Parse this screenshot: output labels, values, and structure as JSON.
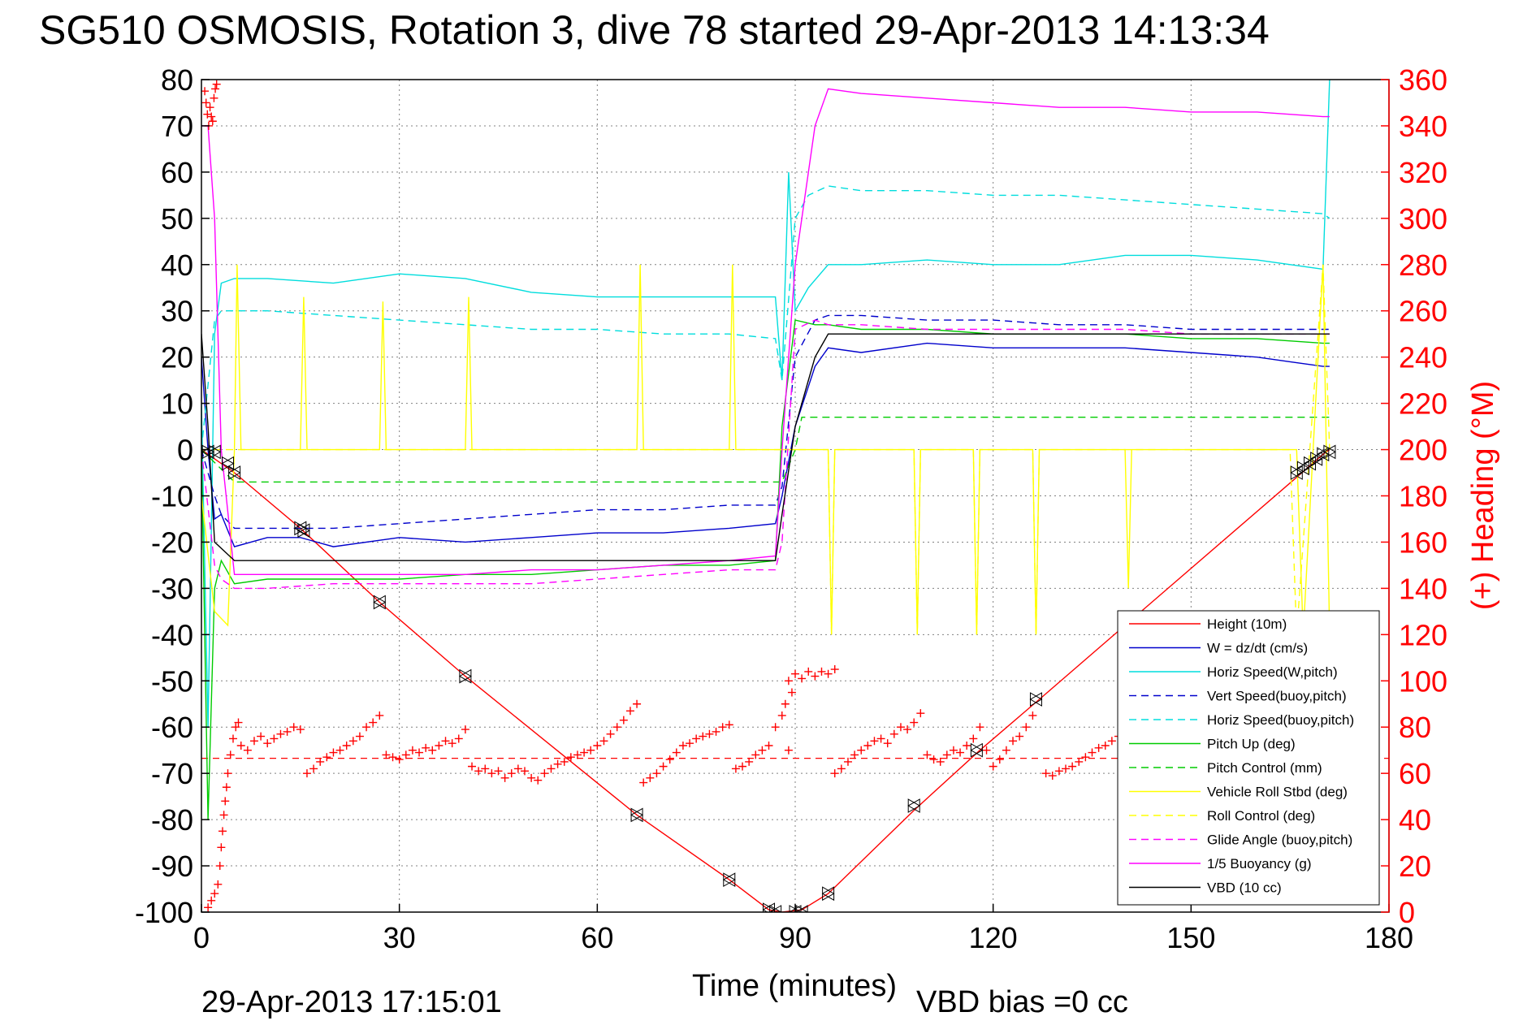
{
  "chart_data": {
    "type": "line",
    "title": "SG510 OSMOSIS, Rotation 3, dive 78 started 29-Apr-2013 14:13:34",
    "xlabel": "Time (minutes)",
    "ylabel_right": "(+) Heading (°M)",
    "xlim": [
      0,
      180
    ],
    "ylim": [
      -100,
      80
    ],
    "y2lim": [
      0,
      360
    ],
    "x_ticks": [
      "0",
      "30",
      "60",
      "90",
      "120",
      "150",
      "180"
    ],
    "y_ticks": [
      "80",
      "70",
      "60",
      "50",
      "40",
      "30",
      "20",
      "10",
      "0",
      "-10",
      "-20",
      "-30",
      "-40",
      "-50",
      "-60",
      "-70",
      "-80",
      "-90",
      "-100"
    ],
    "y2_ticks": [
      "360",
      "340",
      "320",
      "300",
      "280",
      "260",
      "240",
      "220",
      "200",
      "180",
      "160",
      "140",
      "120",
      "100",
      "80",
      "60",
      "40",
      "20",
      "0"
    ],
    "grid": true,
    "legend_position": "bottom-right",
    "footer_date": "29-Apr-2013 17:15:01",
    "footer_vbd": "VBD bias =0 cc",
    "colors": {
      "height": "#ff0000",
      "w": "#0000cc",
      "horiz_w": "#00dddd",
      "pitch": "#00cc00",
      "roll": "#ffff00",
      "glide": "#ff00ff",
      "vbd": "#000000",
      "heading": "#ff0000"
    },
    "series": [
      {
        "name": "Height (10m)",
        "style": "solid",
        "color": "#ff0000",
        "x": [
          0,
          2,
          5,
          15,
          27,
          40,
          66,
          80,
          86,
          88,
          91,
          95,
          108,
          118,
          127,
          140,
          166,
          170,
          171
        ],
        "y": [
          0,
          -2,
          -5,
          -17,
          -33,
          -49,
          -79,
          -93,
          -99.5,
          -100,
          -99.5,
          -96,
          -78,
          -65,
          -54,
          -38,
          -6,
          -1,
          0
        ]
      },
      {
        "name": "W = dz/dt (cm/s)",
        "style": "solid",
        "color": "#0000cc",
        "x": [
          0,
          1,
          2,
          3,
          5,
          10,
          15,
          20,
          30,
          40,
          50,
          60,
          70,
          80,
          87,
          88,
          90,
          93,
          95,
          100,
          110,
          120,
          130,
          140,
          150,
          160,
          165,
          170,
          171
        ],
        "y": [
          20,
          0,
          -15,
          -14,
          -21,
          -19,
          -19,
          -21,
          -19,
          -20,
          -19,
          -18,
          -18,
          -17,
          -16,
          -10,
          5,
          18,
          22,
          21,
          23,
          22,
          22,
          22,
          21,
          20,
          19,
          18,
          18
        ]
      },
      {
        "name": "Horiz Speed(W,pitch)",
        "style": "solid",
        "color": "#00dddd",
        "x": [
          0,
          1,
          2,
          3,
          5,
          10,
          20,
          30,
          40,
          50,
          60,
          70,
          80,
          87,
          88,
          89,
          90,
          92,
          95,
          100,
          110,
          120,
          130,
          140,
          150,
          160,
          170,
          171
        ],
        "y": [
          10,
          -60,
          25,
          36,
          37,
          37,
          36,
          38,
          37,
          34,
          33,
          33,
          33,
          33,
          15,
          60,
          30,
          35,
          40,
          40,
          41,
          40,
          40,
          42,
          42,
          41,
          39,
          80
        ]
      },
      {
        "name": "Vert Speed(buoy,pitch)",
        "style": "dashed",
        "color": "#0000cc",
        "x": [
          0,
          2,
          3,
          5,
          10,
          20,
          30,
          40,
          50,
          60,
          70,
          80,
          87,
          88,
          90,
          93,
          95,
          100,
          110,
          120,
          130,
          140,
          150,
          160,
          170,
          171
        ],
        "y": [
          0,
          -10,
          -14,
          -17,
          -17,
          -17,
          -16,
          -15,
          -14,
          -13,
          -13,
          -12,
          -12,
          -8,
          20,
          28,
          29,
          29,
          28,
          28,
          27,
          27,
          26,
          26,
          26,
          26
        ]
      },
      {
        "name": "Horiz Speed(buoy,pitch)",
        "style": "dashed",
        "color": "#00dddd",
        "x": [
          0,
          2,
          3,
          5,
          10,
          20,
          30,
          40,
          50,
          60,
          70,
          80,
          87,
          88,
          90,
          92,
          95,
          100,
          110,
          120,
          130,
          140,
          150,
          160,
          170,
          171
        ],
        "y": [
          0,
          28,
          30,
          30,
          30,
          29,
          28,
          27,
          26,
          26,
          25,
          25,
          24,
          15,
          50,
          55,
          57,
          56,
          56,
          55,
          55,
          54,
          53,
          52,
          51,
          50
        ]
      },
      {
        "name": "Pitch Up (deg)",
        "style": "solid",
        "color": "#00cc00",
        "x": [
          0,
          1,
          2,
          3,
          5,
          10,
          20,
          30,
          40,
          50,
          60,
          70,
          80,
          87,
          88,
          90,
          93,
          95,
          100,
          110,
          120,
          130,
          140,
          150,
          160,
          170,
          171
        ],
        "y": [
          0,
          -80,
          -30,
          -24,
          -29,
          -28,
          -28,
          -28,
          -27,
          -27,
          -26,
          -25,
          -25,
          -24,
          5,
          28,
          27,
          27,
          26,
          26,
          25,
          25,
          25,
          24,
          24,
          23,
          23
        ]
      },
      {
        "name": "Pitch Control (mm)",
        "style": "dashed",
        "color": "#00cc00",
        "x": [
          0,
          5,
          88,
          90,
          91,
          171
        ],
        "y": [
          0,
          -7,
          -7,
          0,
          7,
          7
        ]
      },
      {
        "name": "Vehicle Roll Stbd (deg)",
        "style": "solid",
        "color": "#ffff00",
        "x": [
          0,
          2,
          4,
          5,
          5.4,
          6,
          15,
          15.5,
          16,
          27,
          27.5,
          28,
          40,
          40.5,
          41,
          66,
          66.5,
          67,
          80,
          80.5,
          81,
          87,
          95,
          95.5,
          96,
          108,
          108.5,
          109,
          117,
          117.5,
          118,
          126,
          126.5,
          127,
          140,
          140.5,
          141,
          166,
          167,
          170,
          171
        ],
        "y": [
          -10,
          -35,
          -38,
          0,
          40,
          0,
          0,
          33,
          0,
          0,
          32,
          0,
          0,
          33,
          0,
          0,
          40,
          0,
          0,
          40,
          0,
          0,
          0,
          -40,
          0,
          0,
          -40,
          0,
          0,
          -40,
          0,
          0,
          -40,
          0,
          0,
          -30,
          0,
          0,
          -40,
          40,
          -40
        ]
      },
      {
        "name": "Roll Control (deg)",
        "style": "dashed",
        "color": "#ffff00",
        "x": [
          0,
          88,
          89,
          95,
          95.5,
          96,
          108,
          108.5,
          109,
          117,
          117.5,
          118,
          126,
          126.5,
          127,
          165,
          166,
          170,
          171
        ],
        "y": [
          0,
          0,
          0,
          0,
          -40,
          0,
          0,
          -40,
          0,
          0,
          -40,
          0,
          0,
          -40,
          0,
          0,
          -40,
          40,
          0
        ]
      },
      {
        "name": "Glide Angle (buoy,pitch)",
        "style": "dashed",
        "color": "#ff00ff",
        "x": [
          0,
          2,
          3,
          5,
          10,
          20,
          30,
          40,
          50,
          60,
          70,
          80,
          87,
          88,
          90,
          93,
          95,
          100,
          110,
          120,
          130,
          140,
          150,
          160,
          170,
          171
        ],
        "y": [
          0,
          -25,
          -28,
          -30,
          -30,
          -29,
          -29,
          -29,
          -29,
          -28,
          -27,
          -26,
          -26,
          -20,
          26,
          28,
          27,
          27,
          26,
          26,
          26,
          26,
          25,
          25,
          25,
          25
        ]
      },
      {
        "name": "1/5 Buoyancy (g)",
        "style": "solid",
        "color": "#ff00ff",
        "x": [
          0,
          1,
          2,
          3,
          5,
          10,
          20,
          30,
          40,
          50,
          60,
          70,
          80,
          87,
          88,
          90,
          93,
          95,
          100,
          110,
          120,
          130,
          140,
          150,
          160,
          170,
          171
        ],
        "y": [
          70,
          70,
          50,
          0,
          -27,
          -27,
          -27,
          -27,
          -27,
          -26,
          -26,
          -25,
          -24,
          -23,
          0,
          40,
          70,
          78,
          77,
          76,
          75,
          74,
          74,
          73,
          73,
          72,
          72
        ]
      },
      {
        "name": "VBD (10 cc)",
        "style": "solid",
        "color": "#000000",
        "x": [
          0,
          1,
          2,
          5,
          10,
          20,
          30,
          40,
          50,
          60,
          70,
          80,
          87,
          88,
          90,
          93,
          95,
          100,
          110,
          120,
          130,
          140,
          150,
          160,
          170,
          171
        ],
        "y": [
          25,
          5,
          -20,
          -24,
          -24,
          -24,
          -24,
          -24,
          -24,
          -24,
          -24,
          -24,
          -24,
          -14,
          5,
          20,
          25,
          25,
          25,
          25,
          25,
          25,
          25,
          25,
          25,
          25
        ]
      }
    ],
    "heading_mean_deg": 66.5,
    "heading_points": [
      [
        0.5,
        355
      ],
      [
        0.7,
        350
      ],
      [
        0.9,
        345
      ],
      [
        1.1,
        340
      ],
      [
        1.3,
        348
      ],
      [
        1.5,
        344
      ],
      [
        1.7,
        342
      ],
      [
        1.9,
        352
      ],
      [
        2.1,
        356
      ],
      [
        2.3,
        358
      ],
      [
        1.0,
        2
      ],
      [
        1.5,
        5
      ],
      [
        2.0,
        8
      ],
      [
        2.5,
        12
      ],
      [
        2.8,
        20
      ],
      [
        3.0,
        28
      ],
      [
        3.2,
        35
      ],
      [
        3.4,
        42
      ],
      [
        3.6,
        48
      ],
      [
        3.8,
        54
      ],
      [
        4.0,
        60
      ],
      [
        4.4,
        68
      ],
      [
        4.8,
        75
      ],
      [
        5.2,
        80
      ],
      [
        5.6,
        82
      ],
      [
        6,
        72
      ],
      [
        7,
        70
      ],
      [
        8,
        74
      ],
      [
        9,
        76
      ],
      [
        10,
        73
      ],
      [
        11,
        75
      ],
      [
        12,
        77
      ],
      [
        13,
        78
      ],
      [
        14,
        80
      ],
      [
        15,
        79
      ],
      [
        16,
        60
      ],
      [
        17,
        62
      ],
      [
        18,
        65
      ],
      [
        19,
        67
      ],
      [
        20,
        69
      ],
      [
        21,
        70
      ],
      [
        22,
        72
      ],
      [
        23,
        74
      ],
      [
        24,
        76
      ],
      [
        25,
        80
      ],
      [
        26,
        82
      ],
      [
        27,
        85
      ],
      [
        28,
        68
      ],
      [
        29,
        67
      ],
      [
        30,
        66
      ],
      [
        31,
        68
      ],
      [
        32,
        70
      ],
      [
        33,
        69
      ],
      [
        34,
        71
      ],
      [
        35,
        70
      ],
      [
        36,
        72
      ],
      [
        37,
        74
      ],
      [
        38,
        73
      ],
      [
        39,
        75
      ],
      [
        40,
        79
      ],
      [
        41,
        63
      ],
      [
        42,
        61
      ],
      [
        43,
        62
      ],
      [
        44,
        60
      ],
      [
        45,
        61
      ],
      [
        46,
        58
      ],
      [
        47,
        60
      ],
      [
        48,
        62
      ],
      [
        49,
        61
      ],
      [
        50,
        58
      ],
      [
        51,
        57
      ],
      [
        52,
        60
      ],
      [
        53,
        62
      ],
      [
        54,
        64
      ],
      [
        55,
        65
      ],
      [
        56,
        67
      ],
      [
        57,
        68
      ],
      [
        58,
        69
      ],
      [
        59,
        70
      ],
      [
        60,
        72
      ],
      [
        61,
        74
      ],
      [
        62,
        77
      ],
      [
        63,
        80
      ],
      [
        64,
        83
      ],
      [
        65,
        87
      ],
      [
        66,
        90
      ],
      [
        67,
        56
      ],
      [
        68,
        58
      ],
      [
        69,
        60
      ],
      [
        70,
        63
      ],
      [
        71,
        66
      ],
      [
        72,
        69
      ],
      [
        73,
        72
      ],
      [
        74,
        73
      ],
      [
        75,
        75
      ],
      [
        76,
        76
      ],
      [
        77,
        77
      ],
      [
        78,
        78
      ],
      [
        79,
        80
      ],
      [
        80,
        81
      ],
      [
        81,
        62
      ],
      [
        82,
        63
      ],
      [
        83,
        65
      ],
      [
        84,
        68
      ],
      [
        85,
        70
      ],
      [
        86,
        72
      ],
      [
        87,
        80
      ],
      [
        88,
        85
      ],
      [
        88.5,
        90
      ],
      [
        89,
        70
      ],
      [
        89.5,
        95
      ],
      [
        89,
        100
      ],
      [
        90,
        103
      ],
      [
        91,
        101
      ],
      [
        92,
        104
      ],
      [
        93,
        102
      ],
      [
        94,
        104
      ],
      [
        95,
        103
      ],
      [
        96,
        105
      ],
      [
        96,
        60
      ],
      [
        97,
        62
      ],
      [
        98,
        65
      ],
      [
        99,
        68
      ],
      [
        100,
        70
      ],
      [
        101,
        72
      ],
      [
        102,
        74
      ],
      [
        103,
        75
      ],
      [
        104,
        73
      ],
      [
        105,
        77
      ],
      [
        106,
        80
      ],
      [
        107,
        79
      ],
      [
        108,
        82
      ],
      [
        109,
        86
      ],
      [
        110,
        68
      ],
      [
        111,
        66
      ],
      [
        112,
        65
      ],
      [
        113,
        68
      ],
      [
        114,
        70
      ],
      [
        115,
        69
      ],
      [
        116,
        72
      ],
      [
        117,
        75
      ],
      [
        118,
        80
      ],
      [
        119,
        70
      ],
      [
        120,
        63
      ],
      [
        121,
        66
      ],
      [
        122,
        70
      ],
      [
        123,
        74
      ],
      [
        124,
        76
      ],
      [
        125,
        80
      ],
      [
        126,
        85
      ],
      [
        128,
        60
      ],
      [
        129,
        59
      ],
      [
        130,
        61
      ],
      [
        131,
        62
      ],
      [
        132,
        63
      ],
      [
        133,
        65
      ],
      [
        134,
        67
      ],
      [
        135,
        69
      ],
      [
        136,
        71
      ],
      [
        137,
        72
      ],
      [
        138,
        74
      ],
      [
        139,
        76
      ],
      [
        140,
        78
      ]
    ],
    "marker_points": [
      [
        1,
        -0.5
      ],
      [
        2,
        -0.5
      ],
      [
        4,
        -3
      ],
      [
        5,
        -5
      ],
      [
        15,
        -17
      ],
      [
        15.5,
        -17.5
      ],
      [
        27,
        -33
      ],
      [
        40,
        -49
      ],
      [
        66,
        -79
      ],
      [
        80,
        -93
      ],
      [
        86,
        -99.5
      ],
      [
        87,
        -100
      ],
      [
        90,
        -100
      ],
      [
        91,
        -100
      ],
      [
        95,
        -96
      ],
      [
        108,
        -77
      ],
      [
        117.5,
        -65
      ],
      [
        126.5,
        -54
      ],
      [
        166,
        -5
      ],
      [
        167,
        -4
      ],
      [
        168,
        -3
      ],
      [
        169,
        -2
      ],
      [
        170,
        -1
      ],
      [
        171,
        -0.5
      ]
    ]
  }
}
